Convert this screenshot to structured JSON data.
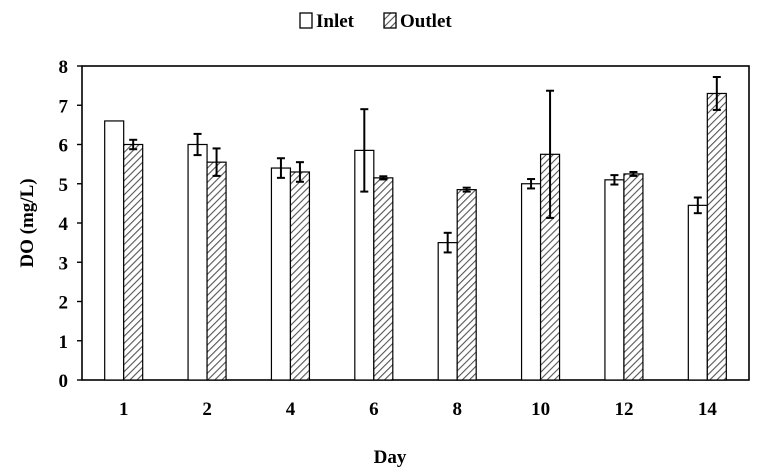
{
  "chart_data": {
    "type": "bar",
    "xlabel": "Day",
    "ylabel": "DO (mg/L)",
    "ylim": [
      0,
      8
    ],
    "yticks": [
      0,
      1,
      2,
      3,
      4,
      5,
      6,
      7,
      8
    ],
    "categories": [
      "1",
      "2",
      "4",
      "6",
      "8",
      "10",
      "12",
      "14"
    ],
    "legend_position": "top-center",
    "grid": false,
    "series": [
      {
        "name": "Inlet",
        "style": "white-fill",
        "values": [
          6.6,
          6.0,
          5.4,
          5.85,
          3.5,
          5.0,
          5.1,
          4.45
        ],
        "errors": [
          0.0,
          0.27,
          0.25,
          1.05,
          0.25,
          0.12,
          0.12,
          0.2
        ]
      },
      {
        "name": "Outlet",
        "style": "diagonal-hatch",
        "values": [
          6.0,
          5.55,
          5.3,
          5.15,
          4.85,
          5.75,
          5.25,
          7.3
        ],
        "errors": [
          0.12,
          0.35,
          0.25,
          0.04,
          0.05,
          1.62,
          0.05,
          0.42
        ]
      }
    ]
  }
}
